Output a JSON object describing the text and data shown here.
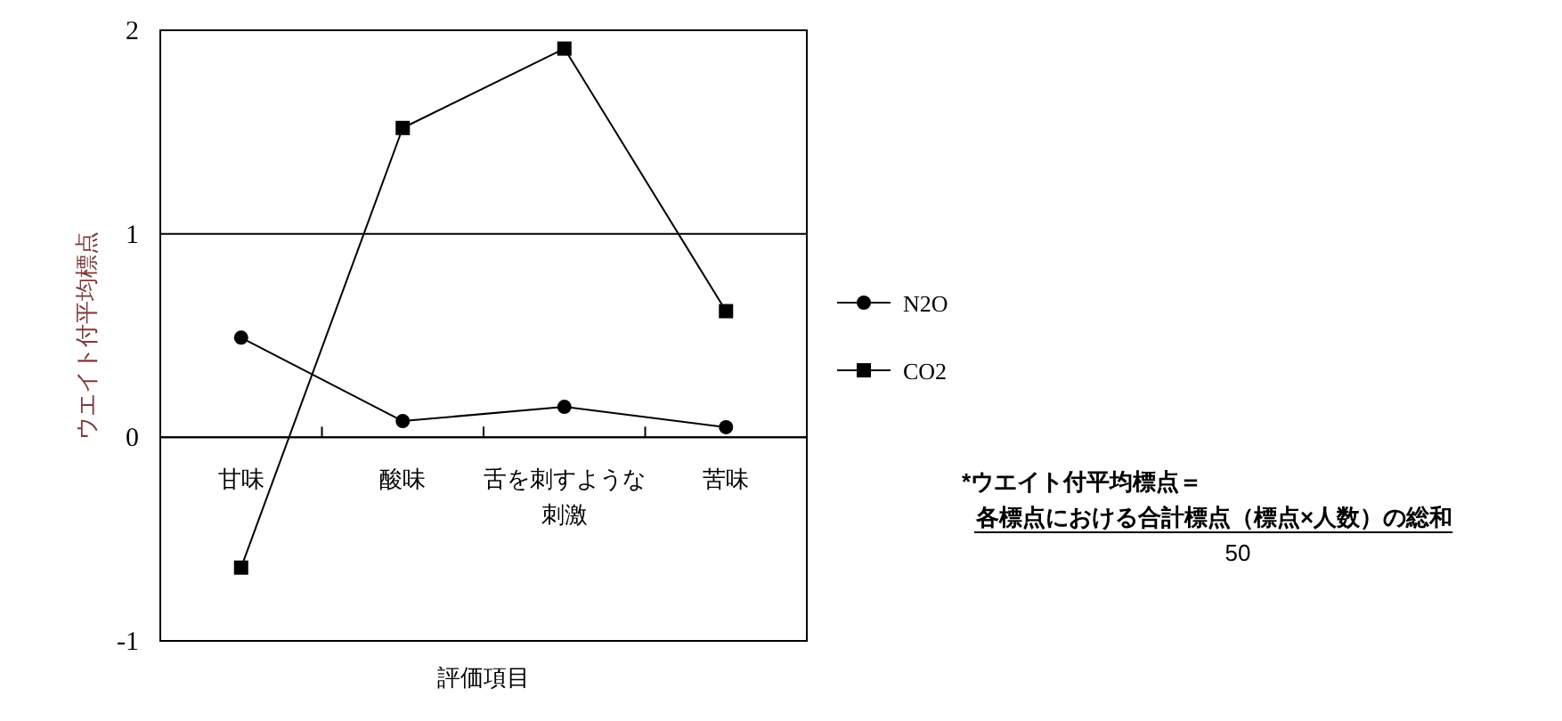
{
  "chart_data": {
    "type": "line",
    "xlabel": "評価項目",
    "ylabel": "ウエイト付平均標点",
    "categories": [
      "甘味",
      "酸味",
      "舌を刺すような刺激",
      "苦味"
    ],
    "series": [
      {
        "name": "N2O",
        "color": "#000000",
        "marker": "circle",
        "values": [
          0.49,
          0.08,
          0.15,
          0.05
        ]
      },
      {
        "name": "CO2",
        "color": "#000000",
        "marker": "square",
        "values": [
          -0.64,
          1.52,
          1.91,
          0.62
        ]
      }
    ],
    "ylim": [
      -1,
      2
    ],
    "yticks": [
      -1,
      0,
      1,
      2
    ],
    "grid": "y",
    "legend": "right",
    "line_style": "solid",
    "annotations": [
      "*ウエイト付平均標点＝",
      "各標点における合計標点（標点×人数）の総和",
      "50"
    ]
  }
}
